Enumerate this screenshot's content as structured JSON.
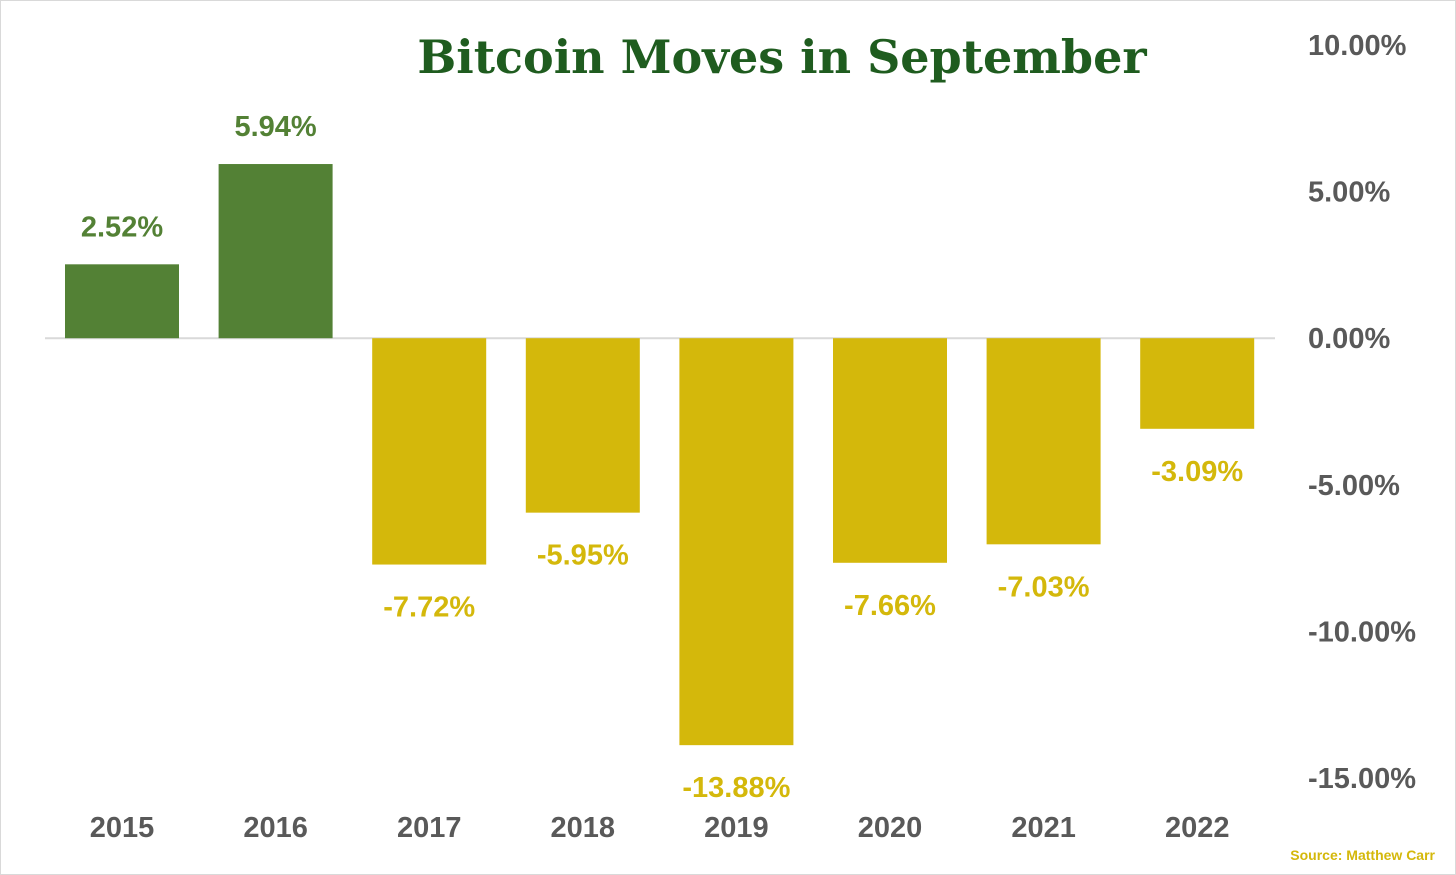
{
  "chart_data": {
    "type": "bar",
    "title": "Bitcoin Moves in September",
    "categories": [
      "2015",
      "2016",
      "2017",
      "2018",
      "2019",
      "2020",
      "2021",
      "2022"
    ],
    "values": [
      2.52,
      5.94,
      -7.72,
      -5.95,
      -13.88,
      -7.66,
      -7.03,
      -3.09
    ],
    "data_labels": [
      "2.52%",
      "5.94%",
      "-7.72%",
      "-5.95%",
      "-13.88%",
      "-7.66%",
      "-7.03%",
      "-3.09%"
    ],
    "ylim": [
      -15,
      10
    ],
    "yticks": [
      10,
      5,
      0,
      -5,
      -10,
      -15
    ],
    "ytick_labels": [
      "10.00%",
      "5.00%",
      "0.00%",
      "-5.00%",
      "-10.00%",
      "-15.00%"
    ],
    "y_axis_position": "right",
    "grid": false,
    "legend": "none",
    "colors": {
      "positive": "#538135",
      "negative": "#d4b80b",
      "title": "#1f5c1f",
      "axis_text": "#595959",
      "zero_line": "#d9d9d9"
    }
  },
  "source": "Source: Matthew Carr"
}
